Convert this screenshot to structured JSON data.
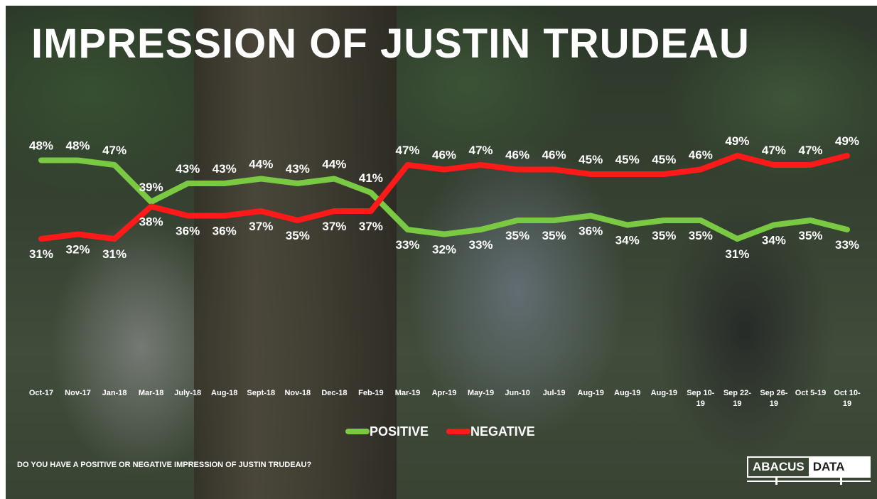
{
  "title": "IMPRESSION OF JUSTIN TRUDEAU",
  "question": "DO YOU HAVE A POSITIVE OR NEGATIVE IMPRESSION OF JUSTIN TRUDEAU?",
  "logo": {
    "part1": "ABACUS",
    "part2": "DATA"
  },
  "colors": {
    "positive": "#7ac943",
    "negative": "#ff1a1a"
  },
  "chart_data": {
    "type": "line",
    "title": "IMPRESSION OF JUSTIN TRUDEAU",
    "xlabel": "",
    "ylabel": "",
    "ylim": [
      28,
      52
    ],
    "grid": false,
    "legend": "bottom-center",
    "categories": [
      [
        "Oct-17"
      ],
      [
        "Nov-17"
      ],
      [
        "Jan-18"
      ],
      [
        "Mar-18"
      ],
      [
        "July-18"
      ],
      [
        "Aug-18"
      ],
      [
        "Sept-18"
      ],
      [
        "Nov-18"
      ],
      [
        "Dec-18"
      ],
      [
        "Feb-19"
      ],
      [
        "Mar-19"
      ],
      [
        "Apr-19"
      ],
      [
        "May-19"
      ],
      [
        "Jun-10"
      ],
      [
        "Jul-19"
      ],
      [
        "Aug-19"
      ],
      [
        "Aug-19"
      ],
      [
        "Aug-19"
      ],
      [
        "Sep 10-",
        "19"
      ],
      [
        "Sep 22-",
        "19"
      ],
      [
        "Sep 26-",
        "19"
      ],
      [
        "Oct 5-19"
      ],
      [
        "Oct 10-",
        "19"
      ]
    ],
    "series": [
      {
        "name": "POSITIVE",
        "values": [
          48,
          48,
          47,
          39,
          43,
          43,
          44,
          43,
          44,
          41,
          33,
          32,
          33,
          35,
          35,
          36,
          34,
          35,
          35,
          31,
          34,
          35,
          33
        ]
      },
      {
        "name": "NEGATIVE",
        "values": [
          31,
          32,
          31,
          38,
          36,
          36,
          37,
          35,
          37,
          37,
          47,
          46,
          47,
          46,
          46,
          45,
          45,
          45,
          46,
          49,
          47,
          47,
          49
        ]
      }
    ]
  }
}
